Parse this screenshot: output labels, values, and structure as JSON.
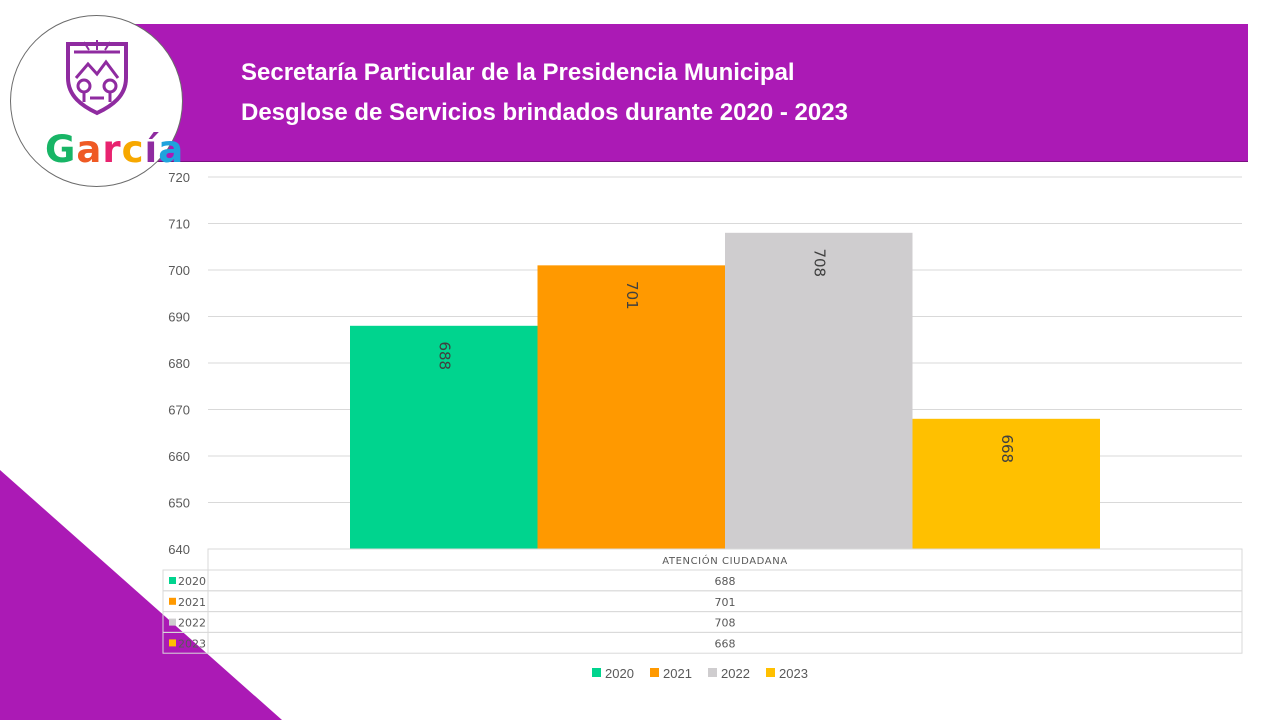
{
  "header": {
    "title_line1": "Secretaría Particular de la Presidencia Municipal",
    "title_line2": "Desglose de Servicios brindados durante 2020 - 2023"
  },
  "logo": {
    "letters": [
      "G",
      "a",
      "r",
      "c",
      "í",
      "a"
    ],
    "letter_colors": [
      "#18b566",
      "#ef5a24",
      "#e8236f",
      "#f7a800",
      "#8f2ba0",
      "#1fa3dd"
    ]
  },
  "colors": {
    "banner": "#ab1ab5",
    "series": [
      "#00d48e",
      "#ff9900",
      "#cfcdcf",
      "#ffc000"
    ]
  },
  "chart_data": {
    "type": "bar",
    "categories": [
      "ATENCIÓN CIUDADANA"
    ],
    "series": [
      {
        "name": "2020",
        "values": [
          688
        ]
      },
      {
        "name": "2021",
        "values": [
          701
        ]
      },
      {
        "name": "2022",
        "values": [
          708
        ]
      },
      {
        "name": "2023",
        "values": [
          668
        ]
      }
    ],
    "ylim": [
      640,
      720
    ],
    "yticks": [
      640,
      650,
      660,
      670,
      680,
      690,
      700,
      710,
      720
    ],
    "data_table": true,
    "legend": "bottom",
    "grid": true
  }
}
